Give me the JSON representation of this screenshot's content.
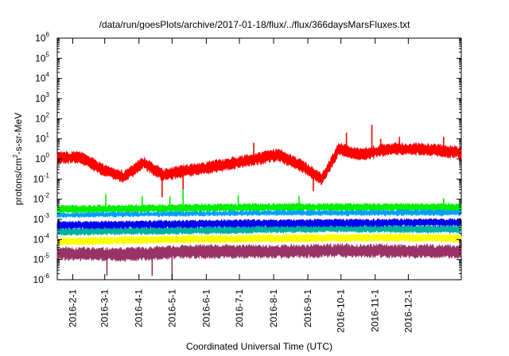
{
  "chart_data": {
    "type": "line",
    "title": "/data/run/goesPlots/archive/2017-01-18/flux/../flux/366daysMarsFluxes.txt",
    "xlabel": "Coordinated Universal Time (UTC)",
    "ylabel": {
      "pre": "protons/cm",
      "sup": "2",
      "post": "-s-sr-MeV"
    },
    "x_range_days": [
      0,
      366
    ],
    "x_start_date": "2016-01-18",
    "x_ticks": [
      {
        "label": "2016-2-1",
        "day": 14
      },
      {
        "label": "2016-3-1",
        "day": 43
      },
      {
        "label": "2016-4-1",
        "day": 74
      },
      {
        "label": "2016-5-1",
        "day": 104
      },
      {
        "label": "2016-6-1",
        "day": 135
      },
      {
        "label": "2016-7-1",
        "day": 165
      },
      {
        "label": "2016-8-1",
        "day": 196
      },
      {
        "label": "2016-9-1",
        "day": 227
      },
      {
        "label": "2016-10-1",
        "day": 257
      },
      {
        "label": "2016-11-1",
        "day": 288
      },
      {
        "label": "2016-12-1",
        "day": 318
      }
    ],
    "y_scale": "log",
    "ylim_exp": [
      -6,
      6
    ],
    "y_ticks": [
      {
        "base": "10",
        "exp": "6"
      },
      {
        "base": "10",
        "exp": "5"
      },
      {
        "base": "10",
        "exp": "4"
      },
      {
        "base": "10",
        "exp": "3"
      },
      {
        "base": "10",
        "exp": "2"
      },
      {
        "base": "10",
        "exp": "1"
      },
      {
        "base": "10",
        "exp": "0"
      },
      {
        "base": "10",
        "exp": "-1"
      },
      {
        "base": "10",
        "exp": "-2"
      },
      {
        "base": "10",
        "exp": "-3"
      },
      {
        "base": "10",
        "exp": "-4"
      },
      {
        "base": "10",
        "exp": "-5"
      },
      {
        "base": "10",
        "exp": "-6"
      }
    ],
    "series": [
      {
        "name": "maroon",
        "color": "#993366",
        "noise": 0.35,
        "seed": 11,
        "spikes": [
          [
            104,
            -6.0
          ],
          [
            86,
            -5.8
          ],
          [
            45,
            -5.8
          ]
        ],
        "knots": [
          [
            0,
            -4.7
          ],
          [
            60,
            -4.75
          ],
          [
            120,
            -4.6
          ],
          [
            200,
            -4.6
          ],
          [
            260,
            -4.55
          ],
          [
            366,
            -4.6
          ]
        ]
      },
      {
        "name": "yellow",
        "color": "#ffff00",
        "noise": 0.2,
        "seed": 23,
        "spikes": [],
        "knots": [
          [
            0,
            -4.1
          ],
          [
            100,
            -4.0
          ],
          [
            200,
            -3.95
          ],
          [
            300,
            -3.9
          ],
          [
            366,
            -3.95
          ]
        ]
      },
      {
        "name": "teal",
        "color": "#00b0a0",
        "noise": 0.2,
        "seed": 37,
        "spikes": [],
        "knots": [
          [
            0,
            -3.6
          ],
          [
            120,
            -3.55
          ],
          [
            240,
            -3.45
          ],
          [
            366,
            -3.5
          ]
        ]
      },
      {
        "name": "green",
        "color": "#00ee00",
        "noise": 0.2,
        "seed": 41,
        "spikes": [
          [
            44,
            -1.75
          ],
          [
            77,
            -1.85
          ],
          [
            102,
            -1.85
          ],
          [
            114,
            -1.1
          ],
          [
            164,
            -1.8
          ],
          [
            219,
            -1.85
          ],
          [
            350,
            -1.95
          ]
        ],
        "knots": [
          [
            0,
            -2.5
          ],
          [
            100,
            -2.45
          ],
          [
            200,
            -2.4
          ],
          [
            366,
            -2.4
          ]
        ]
      },
      {
        "name": "skyblue",
        "color": "#00a0ff",
        "noise": 0.2,
        "seed": 53,
        "spikes": [],
        "knots": [
          [
            0,
            -2.85
          ],
          [
            180,
            -2.75
          ],
          [
            366,
            -2.7
          ]
        ]
      },
      {
        "name": "white",
        "color": "#ffffff",
        "noise": 0.18,
        "seed": 61,
        "spikes": [],
        "knots": [
          [
            0,
            -3.05
          ],
          [
            180,
            -2.95
          ],
          [
            366,
            -2.95
          ]
        ]
      },
      {
        "name": "blue",
        "color": "#0000ee",
        "noise": 0.2,
        "seed": 71,
        "spikes": [],
        "knots": [
          [
            0,
            -3.3
          ],
          [
            180,
            -3.2
          ],
          [
            366,
            -3.15
          ]
        ]
      },
      {
        "name": "red",
        "color": "#ff0000",
        "noise": 0.32,
        "seed": 83,
        "spikes": [
          [
            95,
            -1.9
          ],
          [
            114,
            -1.5
          ],
          [
            178,
            0.8
          ],
          [
            232,
            -1.6
          ],
          [
            262,
            1.3
          ],
          [
            285,
            1.7
          ],
          [
            293,
            1.0
          ],
          [
            310,
            1.1
          ],
          [
            350,
            1.1
          ]
        ],
        "knots": [
          [
            0,
            0.05
          ],
          [
            20,
            0.1
          ],
          [
            40,
            -0.5
          ],
          [
            60,
            -0.9
          ],
          [
            78,
            -0.2
          ],
          [
            96,
            -0.8
          ],
          [
            115,
            -0.6
          ],
          [
            140,
            -0.4
          ],
          [
            170,
            -0.1
          ],
          [
            200,
            0.2
          ],
          [
            220,
            -0.3
          ],
          [
            240,
            -1.0
          ],
          [
            255,
            0.5
          ],
          [
            275,
            0.2
          ],
          [
            300,
            0.5
          ],
          [
            330,
            0.5
          ],
          [
            366,
            0.3
          ]
        ]
      }
    ]
  }
}
